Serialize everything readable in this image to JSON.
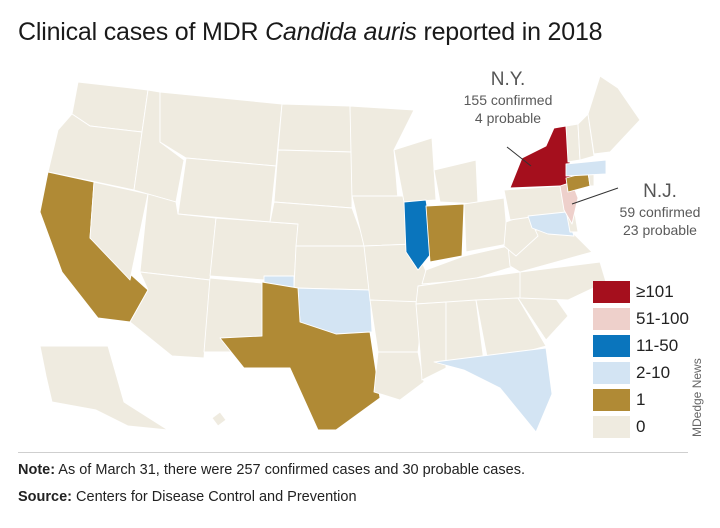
{
  "title": {
    "prefix": "Clinical cases of MDR ",
    "italic": "Candida auris",
    "suffix": " reported in 2018"
  },
  "colors": {
    "ge101": "#a50f1d",
    "r51_100": "#eed0cb",
    "r11_50": "#0a75bd",
    "r2_10": "#d3e4f3",
    "one": "#b08a35",
    "zero": "#efebe0",
    "border": "#ffffff"
  },
  "legend": [
    {
      "label": "≥101",
      "key": "ge101"
    },
    {
      "label": "51-100",
      "key": "r51_100"
    },
    {
      "label": "11-50",
      "key": "r11_50"
    },
    {
      "label": "2-10",
      "key": "r2_10"
    },
    {
      "label": "1",
      "key": "one"
    },
    {
      "label": "0",
      "key": "zero"
    }
  ],
  "callouts": {
    "ny": {
      "abbr": "N.Y.",
      "line1": "155 confirmed",
      "line2": "4 probable"
    },
    "nj": {
      "abbr": "N.J.",
      "line1": "59 confirmed",
      "line2": "23 probable"
    }
  },
  "note": {
    "label": "Note:",
    "text": " As of March 31, there were 257 confirmed cases and 30 probable cases."
  },
  "source": {
    "label": "Source:",
    "text": " Centers for Disease Control and Prevention"
  },
  "credit": "MDedge News",
  "map_data": {
    "category_by_state": {
      "NY": "ge101",
      "NJ": "r51_100",
      "IL": "r11_50",
      "OK": "r2_10",
      "FL": "r2_10",
      "MD": "r2_10",
      "MA": "r2_10",
      "CA": "one",
      "TX": "one",
      "IN": "one",
      "CT": "one"
    },
    "default_category": "zero"
  }
}
